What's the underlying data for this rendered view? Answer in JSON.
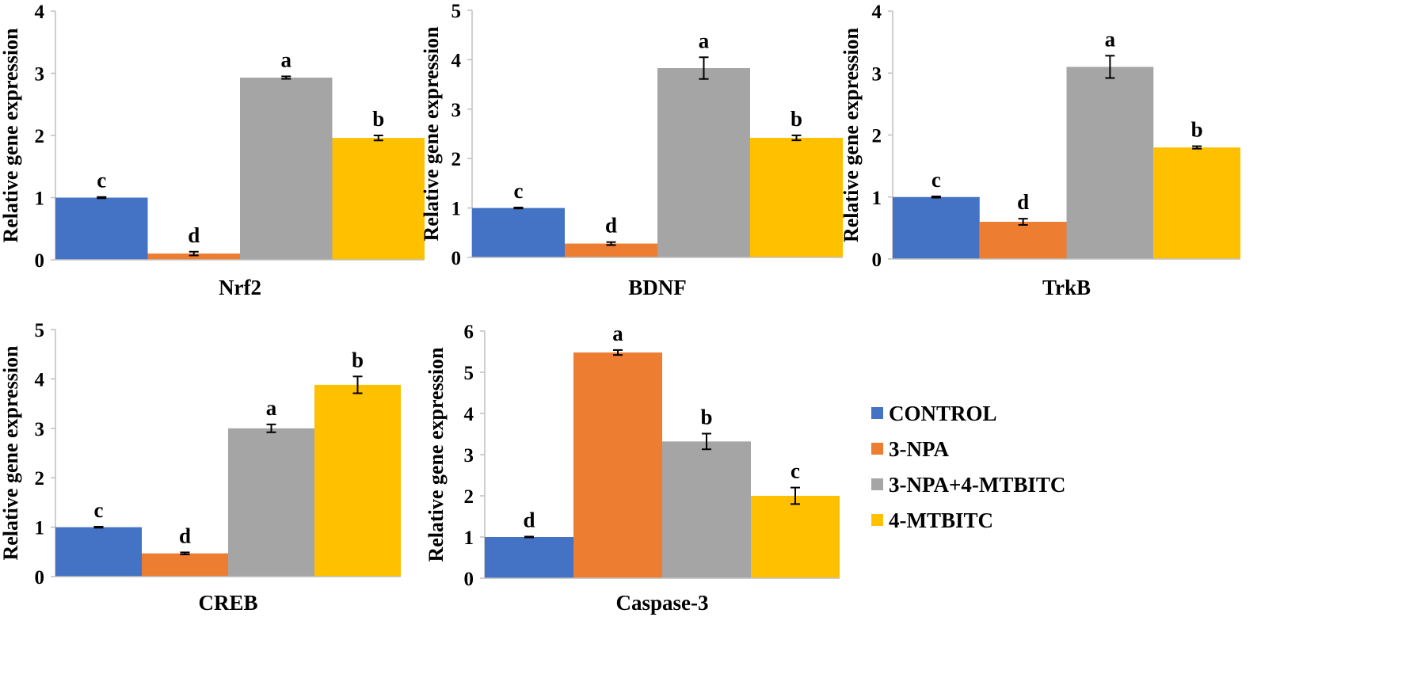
{
  "colors": {
    "CONTROL": "#4472C4",
    "3-NPA": "#ED7D31",
    "3-NPA+4-MTBITC": "#A5A5A5",
    "4-MTBITC": "#FFC000"
  },
  "legend": {
    "position": "right",
    "items": [
      "CONTROL",
      "3-NPA",
      "3-NPA+4-MTBITC",
      "4-MTBITC"
    ]
  },
  "chart_data": [
    {
      "type": "bar",
      "title": "",
      "xlabel": "Nrf2",
      "ylabel": "Relative gene expression",
      "ylim": [
        0,
        4
      ],
      "yticks": [
        0,
        1,
        2,
        3,
        4
      ],
      "categories": [
        "CONTROL",
        "3-NPA",
        "3-NPA+4-MTBITC",
        "4-MTBITC"
      ],
      "values": [
        1.0,
        0.1,
        2.93,
        1.96
      ],
      "errors": [
        0.01,
        0.03,
        0.02,
        0.04
      ],
      "labels": [
        "c",
        "d",
        "a",
        "b"
      ]
    },
    {
      "type": "bar",
      "title": "",
      "xlabel": "BDNF",
      "ylabel": "Relative gene expression",
      "ylim": [
        0,
        5
      ],
      "yticks": [
        0,
        1,
        2,
        3,
        4,
        5
      ],
      "categories": [
        "CONTROL",
        "3-NPA",
        "3-NPA+4-MTBITC",
        "4-MTBITC"
      ],
      "values": [
        1.0,
        0.28,
        3.83,
        2.42
      ],
      "errors": [
        0.01,
        0.03,
        0.22,
        0.05
      ],
      "labels": [
        "c",
        "d",
        "a",
        "b"
      ]
    },
    {
      "type": "bar",
      "title": "",
      "xlabel": "TrkB",
      "ylabel": "Relative gene expression",
      "ylim": [
        0,
        4
      ],
      "yticks": [
        0,
        1,
        2,
        3,
        4
      ],
      "categories": [
        "CONTROL",
        "3-NPA",
        "3-NPA+4-MTBITC",
        "4-MTBITC"
      ],
      "values": [
        1.0,
        0.6,
        3.1,
        1.8
      ],
      "errors": [
        0.01,
        0.05,
        0.18,
        0.02
      ],
      "labels": [
        "c",
        "d",
        "a",
        "b"
      ]
    },
    {
      "type": "bar",
      "title": "",
      "xlabel": "CREB",
      "ylabel": "Relative gene expression",
      "ylim": [
        0,
        5
      ],
      "yticks": [
        0,
        1,
        2,
        3,
        4,
        5
      ],
      "categories": [
        "CONTROL",
        "3-NPA",
        "3-NPA+4-MTBITC",
        "4-MTBITC"
      ],
      "values": [
        1.0,
        0.47,
        3.0,
        3.88
      ],
      "errors": [
        0.01,
        0.02,
        0.08,
        0.17
      ],
      "labels": [
        "c",
        "d",
        "a",
        "b"
      ]
    },
    {
      "type": "bar",
      "title": "",
      "xlabel": "Caspase-3",
      "ylabel": "Relative gene expression",
      "ylim": [
        0,
        6
      ],
      "yticks": [
        0,
        1,
        2,
        3,
        4,
        5,
        6
      ],
      "categories": [
        "CONTROL",
        "3-NPA",
        "3-NPA+4-MTBITC",
        "4-MTBITC"
      ],
      "values": [
        1.0,
        5.48,
        3.32,
        2.0
      ],
      "errors": [
        0.01,
        0.06,
        0.19,
        0.2
      ],
      "labels": [
        "d",
        "a",
        "b",
        "c"
      ]
    }
  ]
}
